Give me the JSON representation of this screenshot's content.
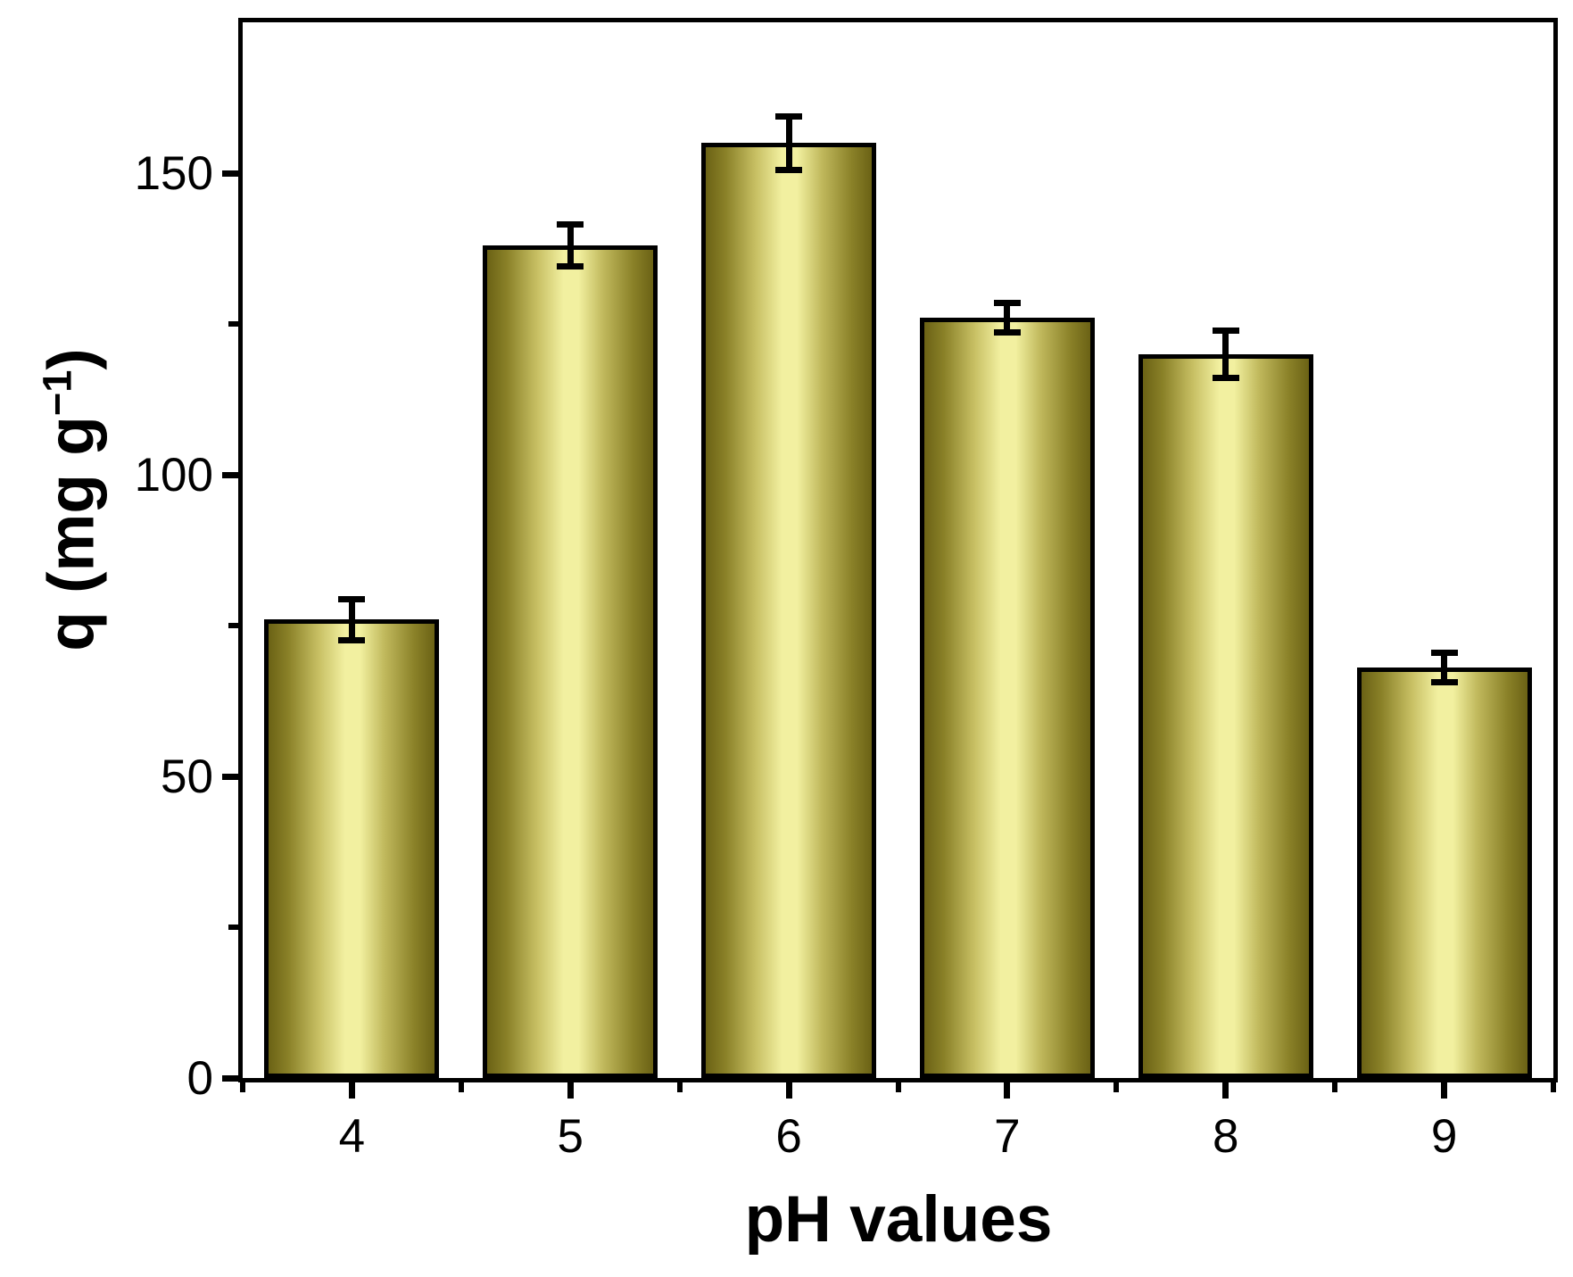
{
  "chart_data": {
    "type": "bar",
    "title": "",
    "categories": [
      "4",
      "5",
      "6",
      "7",
      "8",
      "9"
    ],
    "values": [
      76,
      138,
      155,
      126,
      120,
      68
    ],
    "errors": [
      3.5,
      3.5,
      4.5,
      2.5,
      4,
      2.5
    ],
    "xlabel": "pH values",
    "ylabel": "q (mg g⁻¹)",
    "ylabel_main": "q (mg g",
    "ylabel_sup": "−1",
    "ylabel_close": ")",
    "ylim": [
      0,
      175
    ],
    "yticks_major": [
      0,
      50,
      100,
      150
    ],
    "ytick_labels": [
      "0",
      "50",
      "100",
      "150"
    ],
    "yticks_minor": [
      25,
      75,
      125
    ],
    "grid": "off",
    "legend": "none",
    "bar_width_fraction": 0.8,
    "bar_edge_color": "#000000",
    "error_color": "#000000",
    "bar_gradient": [
      "#6b6215 0%",
      "#8a8128 12%",
      "#c7bf63 30%",
      "#f2f0a0 46%",
      "#f2f0a0 55%",
      "#c0b85c 70%",
      "#8a8128 88%",
      "#6b6215 100%"
    ]
  },
  "styles": {
    "background": "#ffffff",
    "axis_color": "#000000",
    "text_color": "#000000"
  }
}
